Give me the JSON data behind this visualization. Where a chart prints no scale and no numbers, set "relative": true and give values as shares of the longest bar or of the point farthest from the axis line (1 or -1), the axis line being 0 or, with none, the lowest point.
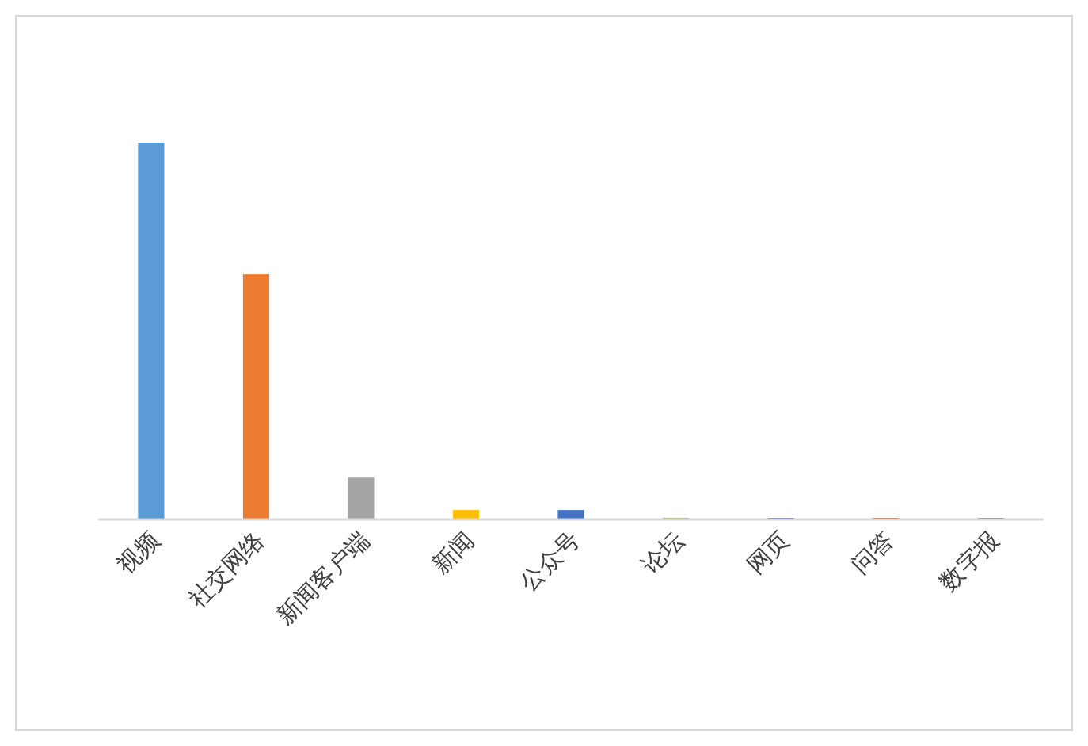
{
  "chart_data": {
    "type": "bar",
    "relative": true,
    "categories": [
      "视频",
      "社交网络",
      "新闻客户端",
      "新闻",
      "公众号",
      "论坛",
      "网页",
      "问答",
      "数字报"
    ],
    "values": [
      1,
      0.651,
      0.113,
      0.025,
      0.025,
      0.004,
      0.004,
      0.004,
      0.004
    ],
    "colors": [
      "#5b9bd5",
      "#ed7d31",
      "#a5a5a5",
      "#ffc000",
      "#4472c4",
      "#70ad47",
      "#255e91",
      "#9e480e",
      "#636363"
    ]
  }
}
